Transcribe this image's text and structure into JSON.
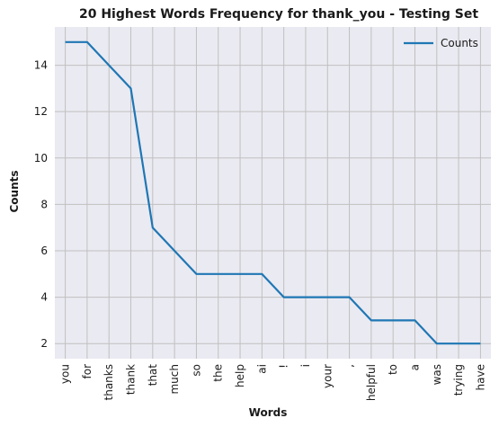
{
  "chart_data": {
    "type": "line",
    "title": "20 Highest Words Frequency for thank_you - Testing Set",
    "xlabel": "Words",
    "ylabel": "Counts",
    "categories": [
      "you",
      "for",
      "thanks",
      "thank",
      "that",
      "much",
      "so",
      "the",
      "help",
      "ai",
      "!",
      "i",
      "your",
      ",",
      "helpful",
      "to",
      "a",
      "was",
      "trying",
      "have"
    ],
    "series": [
      {
        "name": "Counts",
        "values": [
          15,
          15,
          14,
          13,
          7,
          6,
          5,
          5,
          5,
          5,
          4,
          4,
          4,
          4,
          3,
          3,
          3,
          2,
          2,
          2
        ],
        "color": "#1f77b4"
      }
    ],
    "ylim": [
      1.35,
      15.65
    ],
    "yticks": [
      2,
      4,
      6,
      8,
      10,
      12,
      14
    ],
    "grid": true,
    "legend_position": "top-right",
    "background_color": "#eaeaf2",
    "grid_color": "#c0c0c0"
  }
}
